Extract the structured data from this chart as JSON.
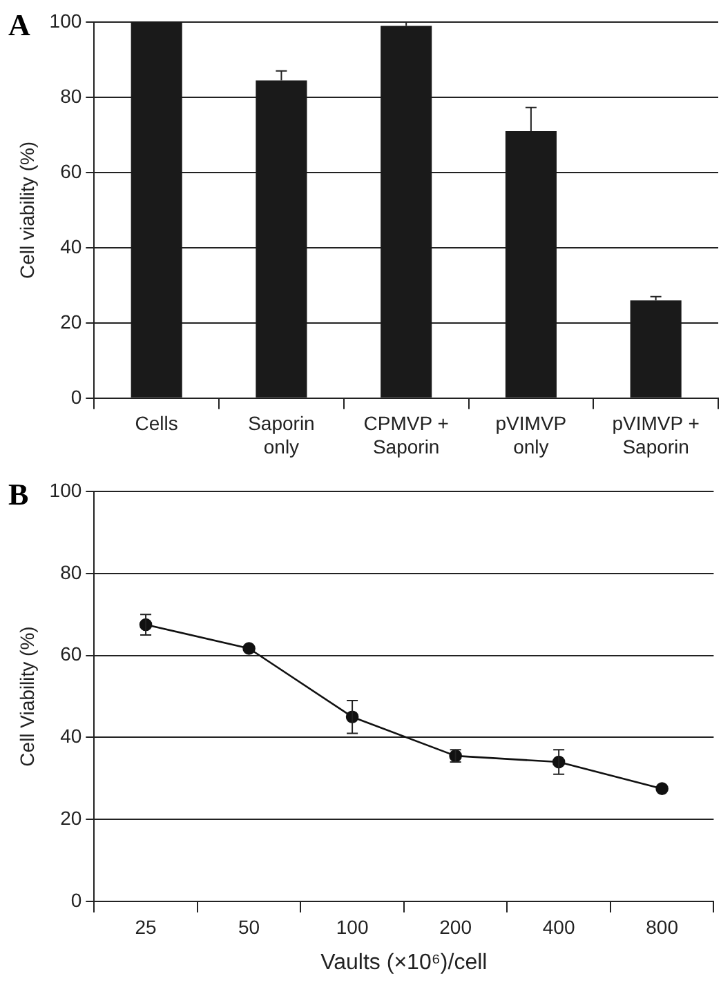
{
  "chart_data": [
    {
      "type": "bar",
      "title": "A",
      "ylabel": "Cell viability (%)",
      "categories": [
        "Cells",
        "Saporin only",
        "CPMVP + Saporin",
        "pVIMVP only",
        "pVIMVP + Saporin"
      ],
      "series": [
        {
          "color": "#1a1a1a",
          "values": [
            100,
            84.5,
            99,
            71,
            26
          ],
          "errors": [
            null,
            [
              84.5,
              87
            ],
            [
              99,
              100
            ],
            [
              71,
              77.3
            ],
            [
              26,
              27
            ]
          ]
        }
      ],
      "ylim": [
        0,
        100
      ],
      "yticks": [
        0,
        20,
        40,
        60,
        80,
        100
      ],
      "grid": "y",
      "legend": false
    },
    {
      "type": "line",
      "title": "B",
      "ylabel": "Cell Viability (%)",
      "xlabel": "Vaults (×10⁶)/cell",
      "categories": [
        "25",
        "50",
        "100",
        "200",
        "400",
        "800"
      ],
      "series": [
        {
          "color": "#111111",
          "values": [
            67.5,
            61.7,
            45,
            35.5,
            34,
            27.5
          ],
          "errors": [
            2.5,
            null,
            4,
            1.5,
            3,
            null
          ]
        }
      ],
      "ylim": [
        0,
        100
      ],
      "yticks": [
        0,
        20,
        40,
        60,
        80,
        100
      ],
      "grid": "y",
      "legend": false,
      "marker": "circle",
      "line_style": "solid"
    }
  ]
}
